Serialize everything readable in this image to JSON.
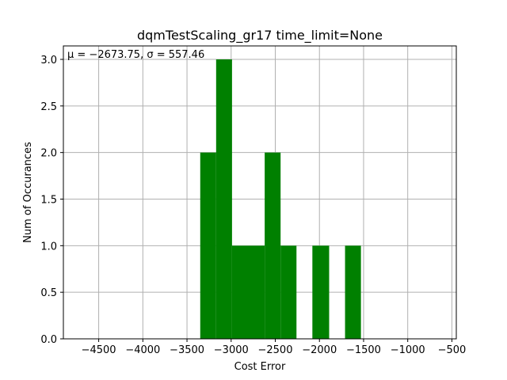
{
  "chart_data": {
    "type": "bar",
    "title": "dqmTestScaling_gr17 time_limit=None",
    "xlabel": "Cost Error",
    "ylabel": "Num of Occurances",
    "annotation": "μ = −2673.75,  σ = 557.46",
    "xlim": [
      -4900,
      -450
    ],
    "ylim": [
      0,
      3.0
    ],
    "x_ticks": [
      -4500,
      -4000,
      -3500,
      -3000,
      -2500,
      -2000,
      -1500,
      -1000,
      -500
    ],
    "x_tick_labels": [
      "−4500",
      "−4000",
      "−3500",
      "−3000",
      "−2500",
      "−2000",
      "−1500",
      "−1000",
      "−500"
    ],
    "y_ticks": [
      0.0,
      0.5,
      1.0,
      1.5,
      2.0,
      2.5,
      3.0
    ],
    "y_tick_labels": [
      "0.0",
      "0.5",
      "1.0",
      "1.5",
      "2.0",
      "2.5",
      "3.0"
    ],
    "grid": true,
    "bar_color": "#008000",
    "bins": [
      {
        "x0": -3350,
        "x1": -3170,
        "count": 2
      },
      {
        "x0": -3170,
        "x1": -2990,
        "count": 3
      },
      {
        "x0": -2990,
        "x1": -2620,
        "count": 1
      },
      {
        "x0": -2620,
        "x1": -2440,
        "count": 2
      },
      {
        "x0": -2440,
        "x1": -2260,
        "count": 1
      },
      {
        "x0": -2080,
        "x1": -1890,
        "count": 1
      },
      {
        "x0": -1710,
        "x1": -1530,
        "count": 1
      }
    ]
  }
}
